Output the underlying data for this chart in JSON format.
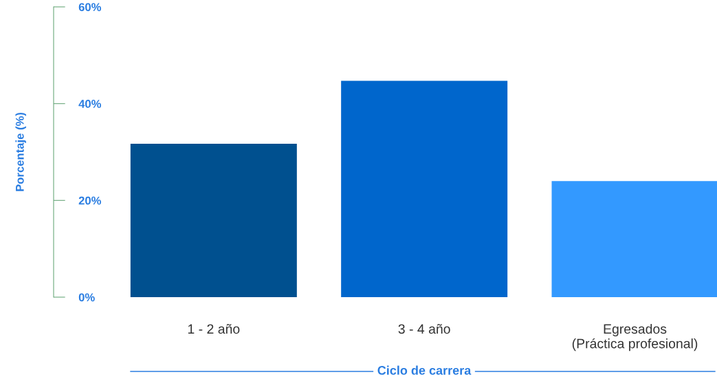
{
  "chart_data": {
    "type": "bar",
    "xlabel": "Ciclo de carrera",
    "ylabel": "Porcentaje (%)",
    "categories": [
      "1 - 2 año",
      "3 - 4 año",
      "Egresados\n(Práctica profesional)"
    ],
    "values": [
      31.7,
      44.7,
      24
    ],
    "colors": [
      "#00508f",
      "#0066cc",
      "#3399ff"
    ],
    "ylim": [
      0,
      60
    ],
    "yticks": [
      {
        "value": 0,
        "label": "0%"
      },
      {
        "value": 20,
        "label": "20%"
      },
      {
        "value": 40,
        "label": "40%"
      },
      {
        "value": 60,
        "label": "60%"
      }
    ],
    "grid": false
  }
}
